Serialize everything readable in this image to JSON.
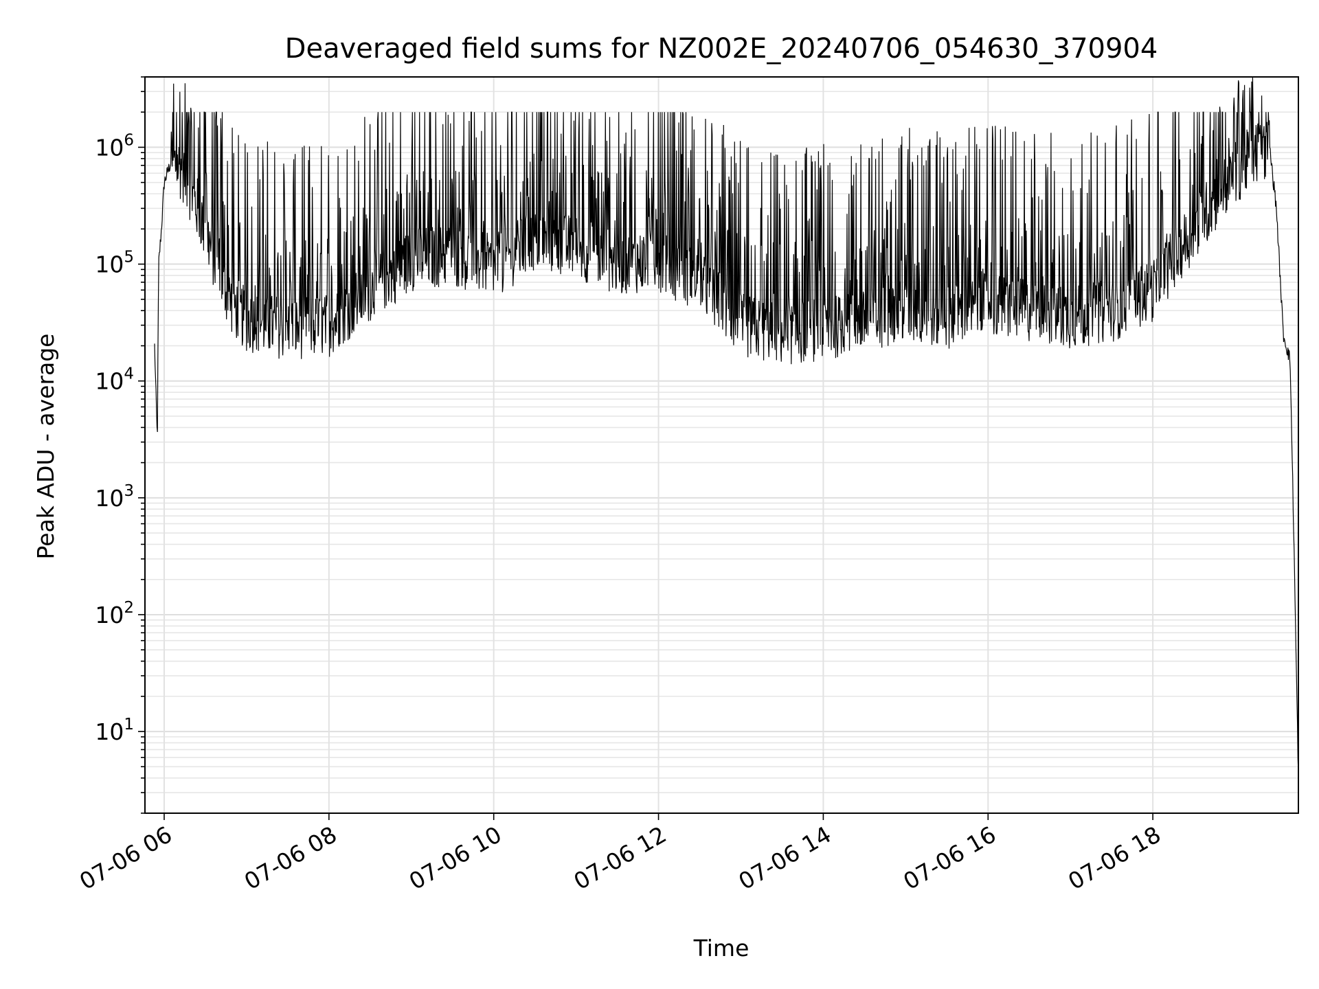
{
  "chart_data": {
    "type": "line",
    "title": "Deaveraged field sums for NZ002E_20240706_054630_370904",
    "xlabel": "Time",
    "ylabel": "Peak ADU - average",
    "yscale": "log",
    "ylim": [
      2,
      4000000
    ],
    "xlim": [
      "07-06 05:46",
      "07-06 19:46"
    ],
    "grid": true,
    "legend": "none",
    "line_color": "#000000",
    "x_ticks": [
      "07-06 06",
      "07-06 08",
      "07-06 10",
      "07-06 12",
      "07-06 14",
      "07-06 16",
      "07-06 18"
    ],
    "y_ticks": [
      {
        "base": "10",
        "exp": "1",
        "value": 10
      },
      {
        "base": "10",
        "exp": "2",
        "value": 100
      },
      {
        "base": "10",
        "exp": "3",
        "value": 1000
      },
      {
        "base": "10",
        "exp": "4",
        "value": 10000
      },
      {
        "base": "10",
        "exp": "5",
        "value": 100000
      },
      {
        "base": "10",
        "exp": "6",
        "value": 1000000
      }
    ],
    "series": [
      {
        "time": [
          "07-06 05:53",
          "07-06 05:55",
          "07-06 05:56",
          "07-06 05:58",
          "07-06 06:00",
          "07-06 06:05",
          "07-06 06:10",
          "07-06 06:15",
          "07-06 06:20",
          "07-06 06:30",
          "07-06 06:40",
          "07-06 06:50",
          "07-06 07:00",
          "07-06 07:30",
          "07-06 08:00",
          "07-06 08:30",
          "07-06 09:00",
          "07-06 09:30",
          "07-06 10:00",
          "07-06 10:30",
          "07-06 11:00",
          "07-06 11:30",
          "07-06 12:00",
          "07-06 12:30",
          "07-06 13:00",
          "07-06 13:30",
          "07-06 14:00",
          "07-06 14:30",
          "07-06 15:00",
          "07-06 15:30",
          "07-06 16:00",
          "07-06 16:30",
          "07-06 17:00",
          "07-06 17:30",
          "07-06 18:00",
          "07-06 18:30",
          "07-06 19:00",
          "07-06 19:15",
          "07-06 19:25",
          "07-06 19:30",
          "07-06 19:35",
          "07-06 19:40",
          "07-06 19:43",
          "07-06 19:46"
        ],
        "base": [
          20000,
          3000,
          100000,
          200000,
          500000,
          750000,
          700000,
          600000,
          400000,
          200000,
          80000,
          45000,
          33000,
          28000,
          30000,
          60000,
          110000,
          120000,
          95000,
          160000,
          140000,
          100000,
          110000,
          70000,
          30000,
          25000,
          28000,
          32000,
          40000,
          35000,
          45000,
          40000,
          35000,
          40000,
          60000,
          200000,
          600000,
          900000,
          1000000,
          300000,
          25000,
          15000,
          300,
          4
        ],
        "spike": [
          0,
          0,
          0,
          0,
          0,
          1,
          1,
          1,
          1,
          1,
          1,
          1,
          1,
          1,
          1,
          1,
          1,
          1,
          1,
          1,
          1,
          1,
          1,
          1,
          1,
          1,
          1,
          1,
          1,
          1,
          1,
          1,
          1,
          1,
          1,
          1,
          1,
          1,
          1,
          0,
          0,
          0,
          0,
          0
        ]
      }
    ]
  }
}
